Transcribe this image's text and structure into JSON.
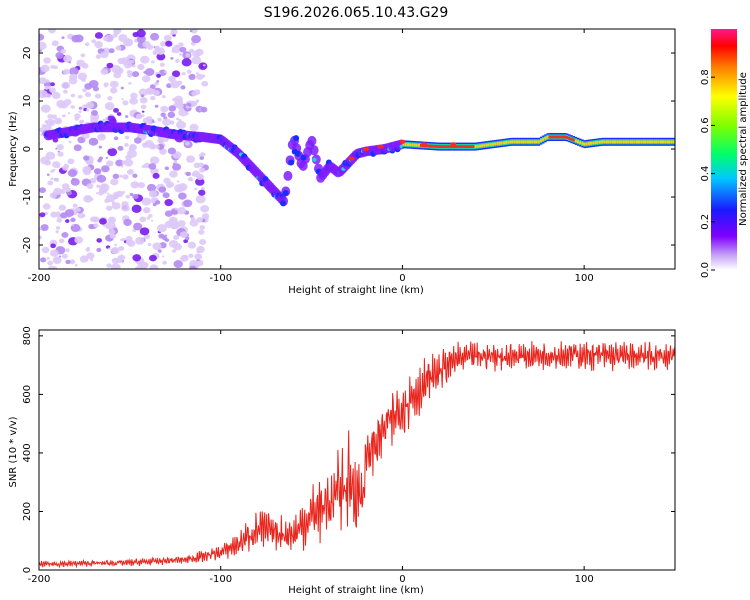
{
  "title": "S196.2026.065.10.43.G29",
  "chart_data": [
    {
      "type": "heatmap",
      "name": "spectrogram",
      "xlabel": "Height of straight line (km)",
      "ylabel": "Frequency (Hz)",
      "xlim": [
        -200,
        150
      ],
      "ylim": [
        -25,
        25
      ],
      "xticks": [
        -200,
        -100,
        0,
        100
      ],
      "yticks": [
        -20,
        -10,
        0,
        10,
        20
      ],
      "colorbar": {
        "label": "Normalized spectral amplitude",
        "range": [
          0,
          1
        ],
        "ticks": [
          "0.0",
          "0.2",
          "0.4",
          "0.6",
          "0.8"
        ]
      },
      "ridge": {
        "description_x_km": [
          -200,
          -185,
          -170,
          -150,
          -140,
          -125,
          -110,
          -100,
          -90,
          -80,
          -70,
          -65,
          -60,
          -55,
          -50,
          -45,
          -40,
          -35,
          -30,
          -25,
          -20,
          -10,
          0,
          20,
          40,
          60,
          75,
          80,
          90,
          100,
          110,
          150
        ],
        "frequency_hz": [
          2.5,
          3.5,
          4.5,
          4.5,
          4.0,
          3.0,
          2.5,
          2.0,
          -1.0,
          -5.0,
          -9.0,
          -11.0,
          2.5,
          -4.0,
          2.0,
          -6.0,
          -3.5,
          -5.0,
          -3.0,
          -1.0,
          -0.5,
          0.0,
          1.0,
          0.5,
          0.5,
          1.5,
          1.5,
          2.5,
          2.5,
          1.0,
          1.5,
          1.5
        ]
      }
    },
    {
      "type": "line",
      "name": "snr",
      "xlabel": "Height of straight line (km)",
      "ylabel": "SNR (10 * v/v)",
      "xlim": [
        -200,
        150
      ],
      "ylim": [
        0,
        820
      ],
      "xticks": [
        -200,
        -100,
        0,
        100
      ],
      "yticks": [
        0,
        200,
        400,
        600,
        800
      ],
      "color": "#e8241c",
      "envelope_x_km": [
        -200,
        -150,
        -120,
        -100,
        -90,
        -80,
        -70,
        -60,
        -50,
        -40,
        -30,
        -22,
        -20,
        -10,
        0,
        10,
        20,
        30,
        40,
        60,
        80,
        100,
        120,
        150
      ],
      "envelope_mean": [
        20,
        25,
        35,
        60,
        90,
        140,
        130,
        120,
        190,
        230,
        300,
        250,
        380,
        480,
        560,
        620,
        680,
        720,
        730,
        730,
        735,
        735,
        730,
        730
      ],
      "envelope_amp": [
        10,
        12,
        15,
        25,
        45,
        70,
        60,
        70,
        100,
        140,
        180,
        120,
        80,
        100,
        110,
        90,
        70,
        55,
        50,
        50,
        50,
        50,
        50,
        45
      ]
    }
  ]
}
